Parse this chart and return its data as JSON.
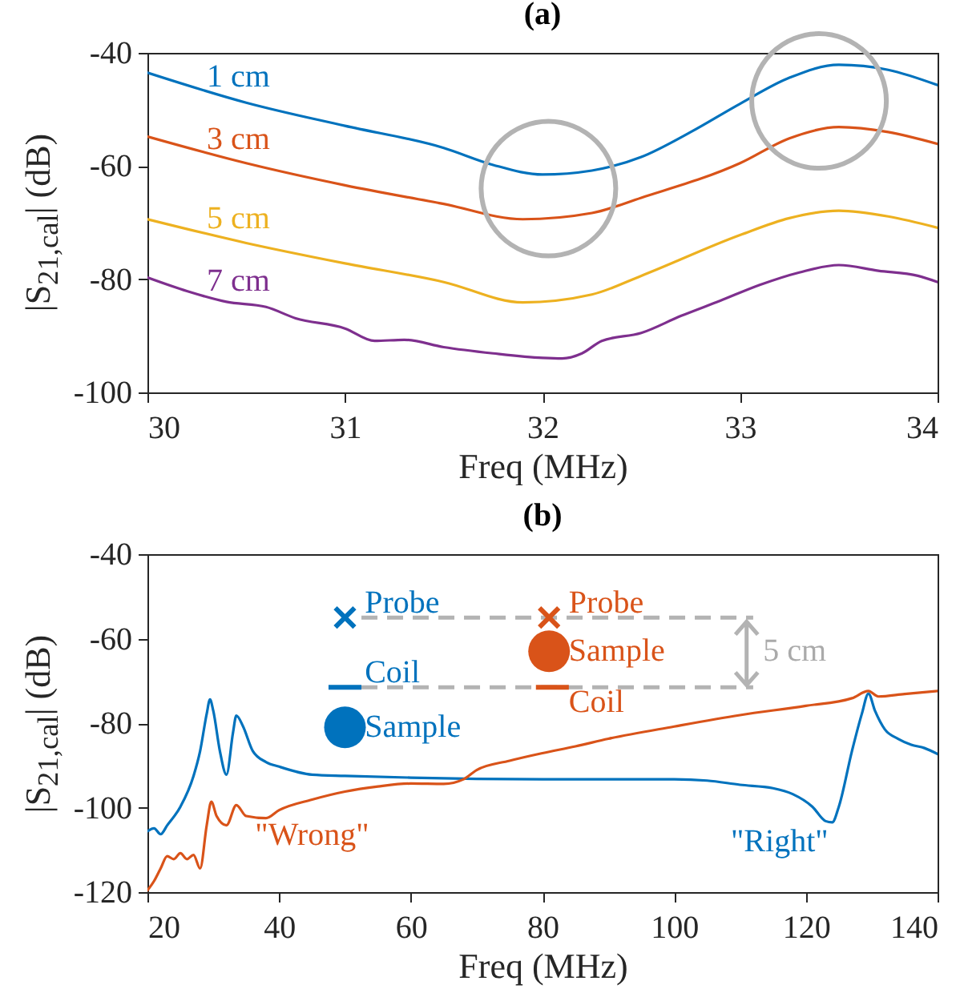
{
  "chart_data": [
    {
      "type": "line",
      "title": "(a)",
      "xlabel": "Freq (MHz)",
      "ylabel": "|S$_{21,cal}$| (dB)",
      "xlim": [
        30,
        34
      ],
      "xticks": [
        30,
        31,
        32,
        33,
        34
      ],
      "ylim": [
        -100,
        -40
      ],
      "yticks": [
        -100,
        -80,
        -60,
        -40
      ],
      "series": [
        {
          "name": "1 cm",
          "color": "#0072bd",
          "x": [
            30,
            30.5,
            31,
            31.5,
            31.75,
            32,
            32.25,
            32.5,
            32.75,
            33,
            33.25,
            33.5,
            33.75,
            34
          ],
          "values": [
            -43.5,
            -48.8,
            -52.9,
            -56.8,
            -59.8,
            -61.5,
            -60.8,
            -58.4,
            -54,
            -49,
            -44.4,
            -42.1,
            -43,
            -45.7
          ]
        },
        {
          "name": "3 cm",
          "color": "#d95319",
          "x": [
            30,
            30.5,
            31,
            31.5,
            31.9,
            32.25,
            32.5,
            33,
            33.25,
            33.5,
            33.75,
            34
          ],
          "values": [
            -54.8,
            -59.5,
            -63.4,
            -66.7,
            -69.4,
            -68.3,
            -65.6,
            -59.5,
            -55.1,
            -53.1,
            -54,
            -56.1
          ]
        },
        {
          "name": "5 cm",
          "color": "#edb120",
          "x": [
            30,
            30.5,
            31,
            31.5,
            31.9,
            32.25,
            32.5,
            33,
            33.25,
            33.5,
            33.75,
            34
          ],
          "values": [
            -69.4,
            -73.6,
            -77.2,
            -80.5,
            -84.1,
            -82.7,
            -79.4,
            -72.2,
            -69.2,
            -67.9,
            -68.9,
            -70.9
          ]
        },
        {
          "name": "7 cm",
          "color": "#7e2f8e",
          "x": [
            30,
            30.2,
            30.4,
            30.6,
            30.75,
            31,
            31.15,
            31.3,
            31.5,
            31.75,
            32,
            32.1,
            32.2,
            32.3,
            32.5,
            32.7,
            32.9,
            33.1,
            33.3,
            33.5,
            33.7,
            33.9,
            34
          ],
          "values": [
            -79.7,
            -82.1,
            -84,
            -84.9,
            -86.9,
            -88.7,
            -90.9,
            -90.7,
            -92,
            -93.1,
            -93.9,
            -94,
            -93.1,
            -90.9,
            -89.5,
            -86.5,
            -83.8,
            -81,
            -78.8,
            -77.5,
            -78.5,
            -79.4,
            -80.5
          ]
        }
      ]
    },
    {
      "type": "line",
      "title": "(b)",
      "xlabel": "Freq (MHz)",
      "ylabel": "|S$_{21,cal}$| (dB)",
      "xlim": [
        20,
        140
      ],
      "xticks": [
        20,
        40,
        60,
        80,
        100,
        120,
        140
      ],
      "ylim": [
        -120,
        -40
      ],
      "yticks": [
        -120,
        -100,
        -80,
        -60,
        -40
      ],
      "annotations": [
        "Probe",
        "Coil",
        "Sample",
        "Probe",
        "Sample",
        "Coil",
        "5 cm"
      ],
      "series": [
        {
          "name": "\"Right\"",
          "color": "#0072bd",
          "x": [
            20,
            21,
            22,
            23,
            25,
            27,
            28,
            29,
            29.5,
            30,
            31,
            32,
            33,
            33.5,
            34.5,
            36,
            38,
            40,
            45,
            50,
            60,
            70,
            80,
            90,
            100,
            105,
            110,
            115,
            118,
            121,
            123,
            124,
            125,
            127,
            128.5,
            129.5,
            130.5,
            132,
            134,
            136,
            138,
            140
          ],
          "values": [
            -105.6,
            -104.9,
            -106.3,
            -104.2,
            -99.8,
            -92.5,
            -86.6,
            -77.8,
            -74.4,
            -77.1,
            -86.6,
            -92.2,
            -82.2,
            -78.2,
            -80.7,
            -86.6,
            -89.2,
            -90.3,
            -92.2,
            -92.5,
            -92.9,
            -93.2,
            -93.3,
            -93.3,
            -93.3,
            -93.6,
            -94.6,
            -95.4,
            -96.8,
            -99.8,
            -103.2,
            -103.5,
            -99.8,
            -86.6,
            -77.8,
            -73,
            -77.1,
            -81.5,
            -83.7,
            -85.1,
            -85.9,
            -87.3
          ]
        },
        {
          "name": "\"Wrong\"",
          "color": "#d95319",
          "x": [
            20,
            21,
            22,
            23,
            24,
            25,
            26,
            27,
            28,
            29,
            29.7,
            30.5,
            32,
            33.5,
            35,
            38,
            40,
            45,
            50,
            55,
            60,
            65,
            68,
            70,
            75,
            80,
            85,
            90,
            100,
            110,
            120,
            127,
            129.5,
            131,
            135,
            140
          ],
          "values": [
            -119.6,
            -117.4,
            -114.4,
            -111.5,
            -112.2,
            -110.8,
            -112.2,
            -111.2,
            -114.4,
            -104.2,
            -98.6,
            -102,
            -104.2,
            -99.4,
            -102,
            -102.5,
            -100.6,
            -98.1,
            -96.2,
            -95,
            -94.3,
            -94.4,
            -93.3,
            -91.1,
            -88.9,
            -87.1,
            -85.5,
            -83.7,
            -80.8,
            -78.1,
            -75.9,
            -74.1,
            -72.4,
            -73.7,
            -73.1,
            -72.4
          ]
        }
      ]
    }
  ]
}
